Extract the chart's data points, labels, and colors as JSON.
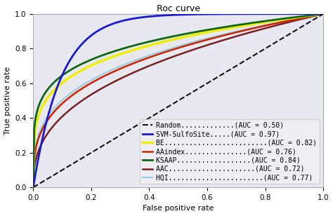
{
  "title": "Roc curve",
  "xlabel": "False positive rate",
  "ylabel": "True positive rate",
  "background_color": "#e8e8f0",
  "fig_background": "#ffffff",
  "curves": [
    {
      "label": "Random.............(AUC = 0.50)",
      "color": "#111111",
      "linestyle": "--",
      "linewidth": 1.5,
      "auc": 0.5
    },
    {
      "label": "SVM-SulfoSite.....(AUC = 0.97)",
      "color": "#1a1acc",
      "linestyle": "-",
      "linewidth": 2.0,
      "auc": 0.97,
      "alpha": 1.0,
      "concavity": 8.0
    },
    {
      "label": "BE.........................(AUC = 0.82)",
      "color": "#eeee00",
      "linestyle": "-",
      "linewidth": 2.5,
      "auc": 0.82,
      "alpha": 1.0,
      "concavity": 2.5
    },
    {
      "label": "AAindex...............(AUC = 0.76)",
      "color": "#cc2200",
      "linestyle": "-",
      "linewidth": 1.8,
      "auc": 0.76,
      "alpha": 1.0,
      "concavity": 1.8
    },
    {
      "label": "KSAAP..................(AUC = 0.84)",
      "color": "#116611",
      "linestyle": "-",
      "linewidth": 2.0,
      "auc": 0.84,
      "alpha": 1.0,
      "concavity": 3.0
    },
    {
      "label": "AAC.....................(AUC = 0.72)",
      "color": "#772222",
      "linestyle": "-",
      "linewidth": 1.8,
      "auc": 0.72,
      "alpha": 1.0,
      "concavity": 1.4
    },
    {
      "label": "HQI.......................(AUC = 0.77)",
      "color": "#99ccdd",
      "linestyle": "-",
      "linewidth": 1.5,
      "auc": 0.77,
      "alpha": 1.0,
      "concavity": 2.0
    }
  ],
  "xlim": [
    0,
    1
  ],
  "ylim": [
    0,
    1
  ],
  "xticks": [
    0.0,
    0.2,
    0.4,
    0.6,
    0.8,
    1.0
  ],
  "yticks": [
    0.0,
    0.2,
    0.4,
    0.6,
    0.8,
    1.0
  ],
  "legend_loc": "lower right",
  "legend_fontsize": 7.0
}
